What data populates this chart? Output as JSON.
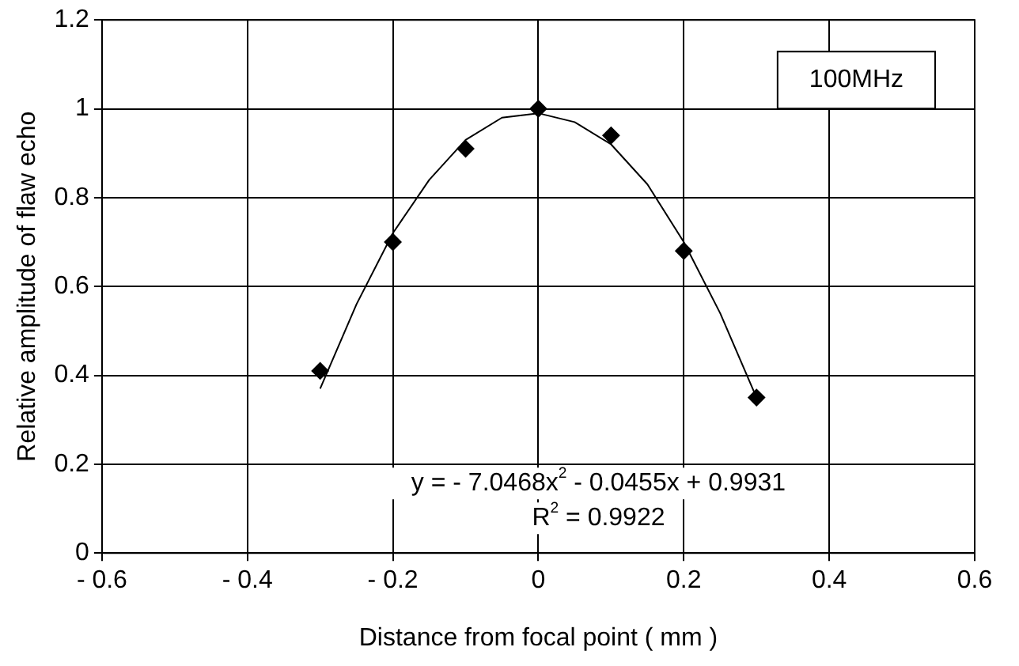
{
  "chart_data": {
    "type": "scatter",
    "xlabel": "Distance from focal point ( mm )",
    "ylabel": "Relative amplitude of flaw echo",
    "x": [
      -0.3,
      -0.2,
      -0.1,
      0,
      0.1,
      0.2,
      0.3
    ],
    "series": [
      {
        "color": "#000000",
        "values": [
          0.41,
          0.7,
          0.91,
          1.0,
          0.94,
          0.68,
          0.35
        ],
        "marker": "diamond"
      },
      {
        "type": "line",
        "color": "#000000",
        "marker": "none",
        "x": [
          -0.3,
          -0.25,
          -0.2,
          -0.15,
          -0.1,
          -0.05,
          0,
          0.05,
          0.1,
          0.15,
          0.2,
          0.25,
          0.3
        ],
        "values": [
          0.37,
          0.56,
          0.72,
          0.84,
          0.93,
          0.98,
          0.99,
          0.97,
          0.92,
          0.83,
          0.7,
          0.54,
          0.35
        ]
      }
    ],
    "xlim": [
      -0.6,
      0.6
    ],
    "xticks": [
      {
        "value": -0.6,
        "label": "- 0.6"
      },
      {
        "value": -0.4,
        "label": "- 0.4"
      },
      {
        "value": -0.2,
        "label": "- 0.2"
      },
      0,
      0.2,
      0.4,
      0.6
    ],
    "ylim": [
      0,
      1.2
    ],
    "yticks": [
      0,
      0.2,
      0.4,
      0.6,
      0.8,
      1,
      1.2
    ],
    "grid": true,
    "legend": false,
    "annotations": [
      "100MHz",
      "y = - 7.0468x$^{2}$ - 0.0455x + 0.9931",
      "R$^{2}$ = 0.9922"
    ]
  }
}
